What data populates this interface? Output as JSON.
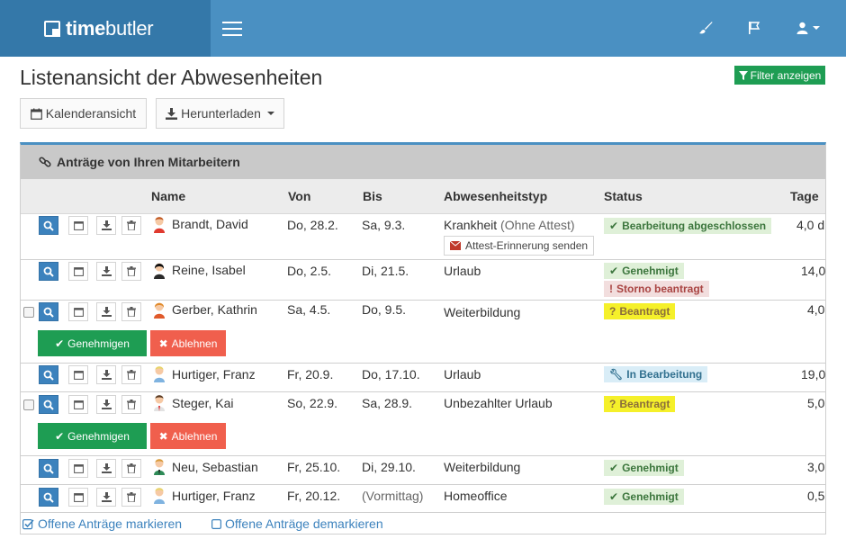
{
  "brand": {
    "name_bold": "time",
    "name_light": "butler"
  },
  "page": {
    "title": "Listenansicht der Abwesenheiten",
    "filter_button": "Filter anzeigen",
    "calendar_button": "Kalenderansicht",
    "download_button": "Herunterladen"
  },
  "panel": {
    "title": "Anträge von Ihren Mitarbeitern",
    "columns": {
      "name": "Name",
      "from": "Von",
      "to": "Bis",
      "type": "Abwesenheitstyp",
      "status": "Status",
      "days": "Tage"
    }
  },
  "rows": [
    {
      "name": "Brandt, David",
      "from": "Do, 28.2.",
      "to": "Sa, 9.3.",
      "type": "Krankheit",
      "type_note": "(Ohne Attest)",
      "reminder": "Attest-Erinnerung senden",
      "status": "Bearbeitung abgeschlossen",
      "days": "4,0 d"
    },
    {
      "name": "Reine, Isabel",
      "from": "Do, 2.5.",
      "to": "Di, 21.5.",
      "type": "Urlaub",
      "status": "Genehmigt",
      "status2": "Storno beantragt",
      "days": "14,0"
    },
    {
      "name": "Gerber, Kathrin",
      "from": "Sa, 4.5.",
      "to": "Do, 9.5.",
      "type": "Weiterbildung",
      "status": "Beantragt",
      "days": "4,0",
      "approve": "Genehmigen",
      "reject": "Ablehnen"
    },
    {
      "name": "Hurtiger, Franz",
      "from": "Fr, 20.9.",
      "to": "Do, 17.10.",
      "type": "Urlaub",
      "status": "In Bearbeitung",
      "days": "19,0"
    },
    {
      "name": "Steger, Kai",
      "from": "So, 22.9.",
      "to": "Sa, 28.9.",
      "type": "Unbezahlter Urlaub",
      "status": "Beantragt",
      "days": "5,0",
      "approve": "Genehmigen",
      "reject": "Ablehnen"
    },
    {
      "name": "Neu, Sebastian",
      "from": "Fr, 25.10.",
      "to": "Di, 29.10.",
      "type": "Weiterbildung",
      "status": "Genehmigt",
      "days": "3,0"
    },
    {
      "name": "Hurtiger, Franz",
      "from": "Fr, 20.12.",
      "to": "(Vormittag)",
      "type": "Homeoffice",
      "status": "Genehmigt",
      "days": "0,5"
    }
  ],
  "footer": {
    "mark": "Offene Anträge markieren",
    "unmark": "Offene Anträge demarkieren"
  },
  "colors": {
    "topbar": "#4a90c2",
    "brand_bg": "#3478a9",
    "primary": "#3c82bd",
    "success": "#1e9d53",
    "danger": "#f05f4d",
    "badge_yellow": "#f5f02a"
  }
}
